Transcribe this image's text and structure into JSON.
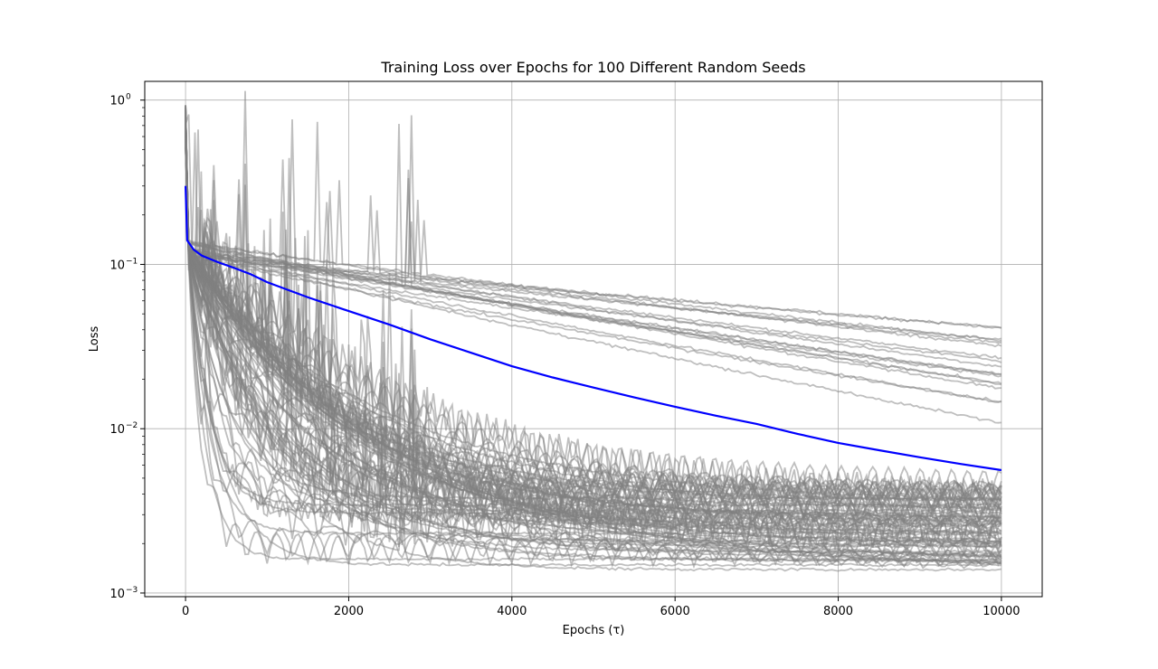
{
  "chart_data": {
    "type": "line",
    "title": "Training Loss over Epochs for 100 Different Random Seeds",
    "xlabel": "Epochs (τ)",
    "ylabel": "Loss",
    "xlim": [
      -500,
      10500
    ],
    "ylim": [
      0.00095,
      1.3
    ],
    "yscale": "log",
    "xticks": [
      0,
      2000,
      4000,
      6000,
      8000,
      10000
    ],
    "xtick_labels": [
      "0",
      "2000",
      "4000",
      "6000",
      "8000",
      "10000"
    ],
    "yticks": [
      0.001,
      0.01,
      0.1,
      1
    ],
    "ytick_labels": [
      "10",
      "10",
      "10",
      "10"
    ],
    "ytick_exponents": [
      "−3",
      "−2",
      "−1",
      "0"
    ],
    "grid": true,
    "colors": {
      "seeds": "#808080",
      "mean": "#0000ff"
    },
    "seed_count": 100,
    "mean_series": {
      "x": [
        0,
        20,
        100,
        200,
        400,
        600,
        800,
        1000,
        1500,
        2000,
        2500,
        3000,
        3500,
        4000,
        4500,
        5000,
        5500,
        6000,
        6500,
        7000,
        7500,
        8000,
        8500,
        9000,
        9500,
        10000
      ],
      "y": [
        0.3,
        0.14,
        0.123,
        0.113,
        0.103,
        0.095,
        0.087,
        0.078,
        0.063,
        0.052,
        0.043,
        0.035,
        0.029,
        0.024,
        0.0205,
        0.0178,
        0.0155,
        0.0136,
        0.012,
        0.0107,
        0.0093,
        0.0082,
        0.0074,
        0.0067,
        0.0061,
        0.0056
      ]
    },
    "seed_series_samples": [
      {
        "x": [
          0,
          20,
          100,
          1000,
          2000,
          4000,
          6000,
          8000,
          10000
        ],
        "y": [
          0.9,
          0.14,
          0.13,
          0.12,
          0.105,
          0.085,
          0.068,
          0.054,
          0.042
        ]
      },
      {
        "x": [
          0,
          20,
          200,
          800,
          1200,
          1600,
          2000,
          3000,
          4000,
          6000,
          8000,
          10000
        ],
        "y": [
          0.95,
          0.12,
          0.05,
          0.012,
          0.006,
          0.0032,
          0.0025,
          0.0018,
          0.0015,
          0.0014,
          0.0014,
          0.0014
        ]
      },
      {
        "x": [
          0,
          20,
          100,
          1000,
          2000,
          4000,
          6000,
          8000,
          10000
        ],
        "y": [
          0.8,
          0.13,
          0.125,
          0.1,
          0.08,
          0.055,
          0.04,
          0.029,
          0.021
        ]
      },
      {
        "x": [
          0,
          20,
          500,
          1500,
          2500,
          4000,
          6000,
          8000,
          10000
        ],
        "y": [
          0.6,
          0.12,
          0.07,
          0.025,
          0.012,
          0.006,
          0.0035,
          0.0025,
          0.002
        ]
      }
    ]
  }
}
